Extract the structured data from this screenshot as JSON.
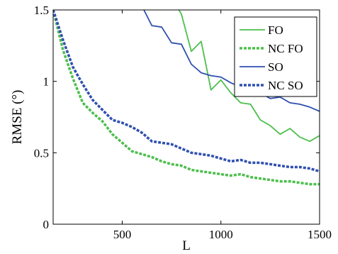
{
  "chart_data": {
    "type": "line",
    "xlabel": "L",
    "ylabel": "RMSE (°)",
    "xlim": [
      150,
      1500
    ],
    "ylim": [
      0,
      1.5
    ],
    "xticks": [
      "500",
      "1000",
      "1500"
    ],
    "yticks": [
      "0",
      "0.5",
      "1",
      "1.5"
    ],
    "grid": false,
    "legend_position": "top-right",
    "series": [
      {
        "name": "FO",
        "color": "#4cbf4c",
        "dash": "solid",
        "x": [
          750,
          800,
          850,
          900,
          950,
          1000,
          1050,
          1100,
          1150,
          1200,
          1250,
          1300,
          1350,
          1400,
          1450,
          1500
        ],
        "y": [
          1.59,
          1.47,
          1.21,
          1.28,
          0.94,
          1.01,
          0.92,
          0.85,
          0.84,
          0.73,
          0.69,
          0.63,
          0.67,
          0.61,
          0.58,
          0.62
        ]
      },
      {
        "name": "NC FO",
        "color": "#4cbf4c",
        "dash": "dashed",
        "x": [
          150,
          200,
          250,
          300,
          350,
          400,
          450,
          500,
          550,
          600,
          650,
          700,
          750,
          800,
          850,
          900,
          950,
          1000,
          1050,
          1100,
          1150,
          1200,
          1250,
          1300,
          1350,
          1400,
          1450,
          1500
        ],
        "y": [
          1.5,
          1.22,
          1.02,
          0.85,
          0.78,
          0.72,
          0.63,
          0.57,
          0.51,
          0.49,
          0.47,
          0.44,
          0.42,
          0.41,
          0.38,
          0.37,
          0.36,
          0.35,
          0.34,
          0.35,
          0.33,
          0.32,
          0.31,
          0.3,
          0.3,
          0.29,
          0.28,
          0.28
        ]
      },
      {
        "name": "SO",
        "color": "#2f4fb0",
        "dash": "solid",
        "x": [
          610,
          650,
          700,
          750,
          800,
          850,
          900,
          950,
          1000,
          1050,
          1100,
          1150,
          1200,
          1250,
          1300,
          1350,
          1400,
          1450,
          1500
        ],
        "y": [
          1.5,
          1.39,
          1.38,
          1.27,
          1.26,
          1.12,
          1.06,
          1.04,
          1.03,
          0.99,
          0.96,
          0.94,
          0.92,
          0.88,
          0.89,
          0.85,
          0.84,
          0.82,
          0.79
        ]
      },
      {
        "name": "NC SO",
        "color": "#2f4fb0",
        "dash": "dashed",
        "x": [
          150,
          200,
          250,
          300,
          350,
          400,
          450,
          500,
          550,
          600,
          650,
          700,
          750,
          800,
          850,
          900,
          950,
          1000,
          1050,
          1100,
          1150,
          1200,
          1250,
          1300,
          1350,
          1400,
          1450,
          1500
        ],
        "y": [
          1.5,
          1.29,
          1.1,
          0.98,
          0.87,
          0.8,
          0.73,
          0.71,
          0.68,
          0.64,
          0.58,
          0.57,
          0.56,
          0.53,
          0.5,
          0.49,
          0.48,
          0.46,
          0.44,
          0.45,
          0.43,
          0.43,
          0.42,
          0.41,
          0.4,
          0.4,
          0.39,
          0.37
        ]
      }
    ]
  }
}
